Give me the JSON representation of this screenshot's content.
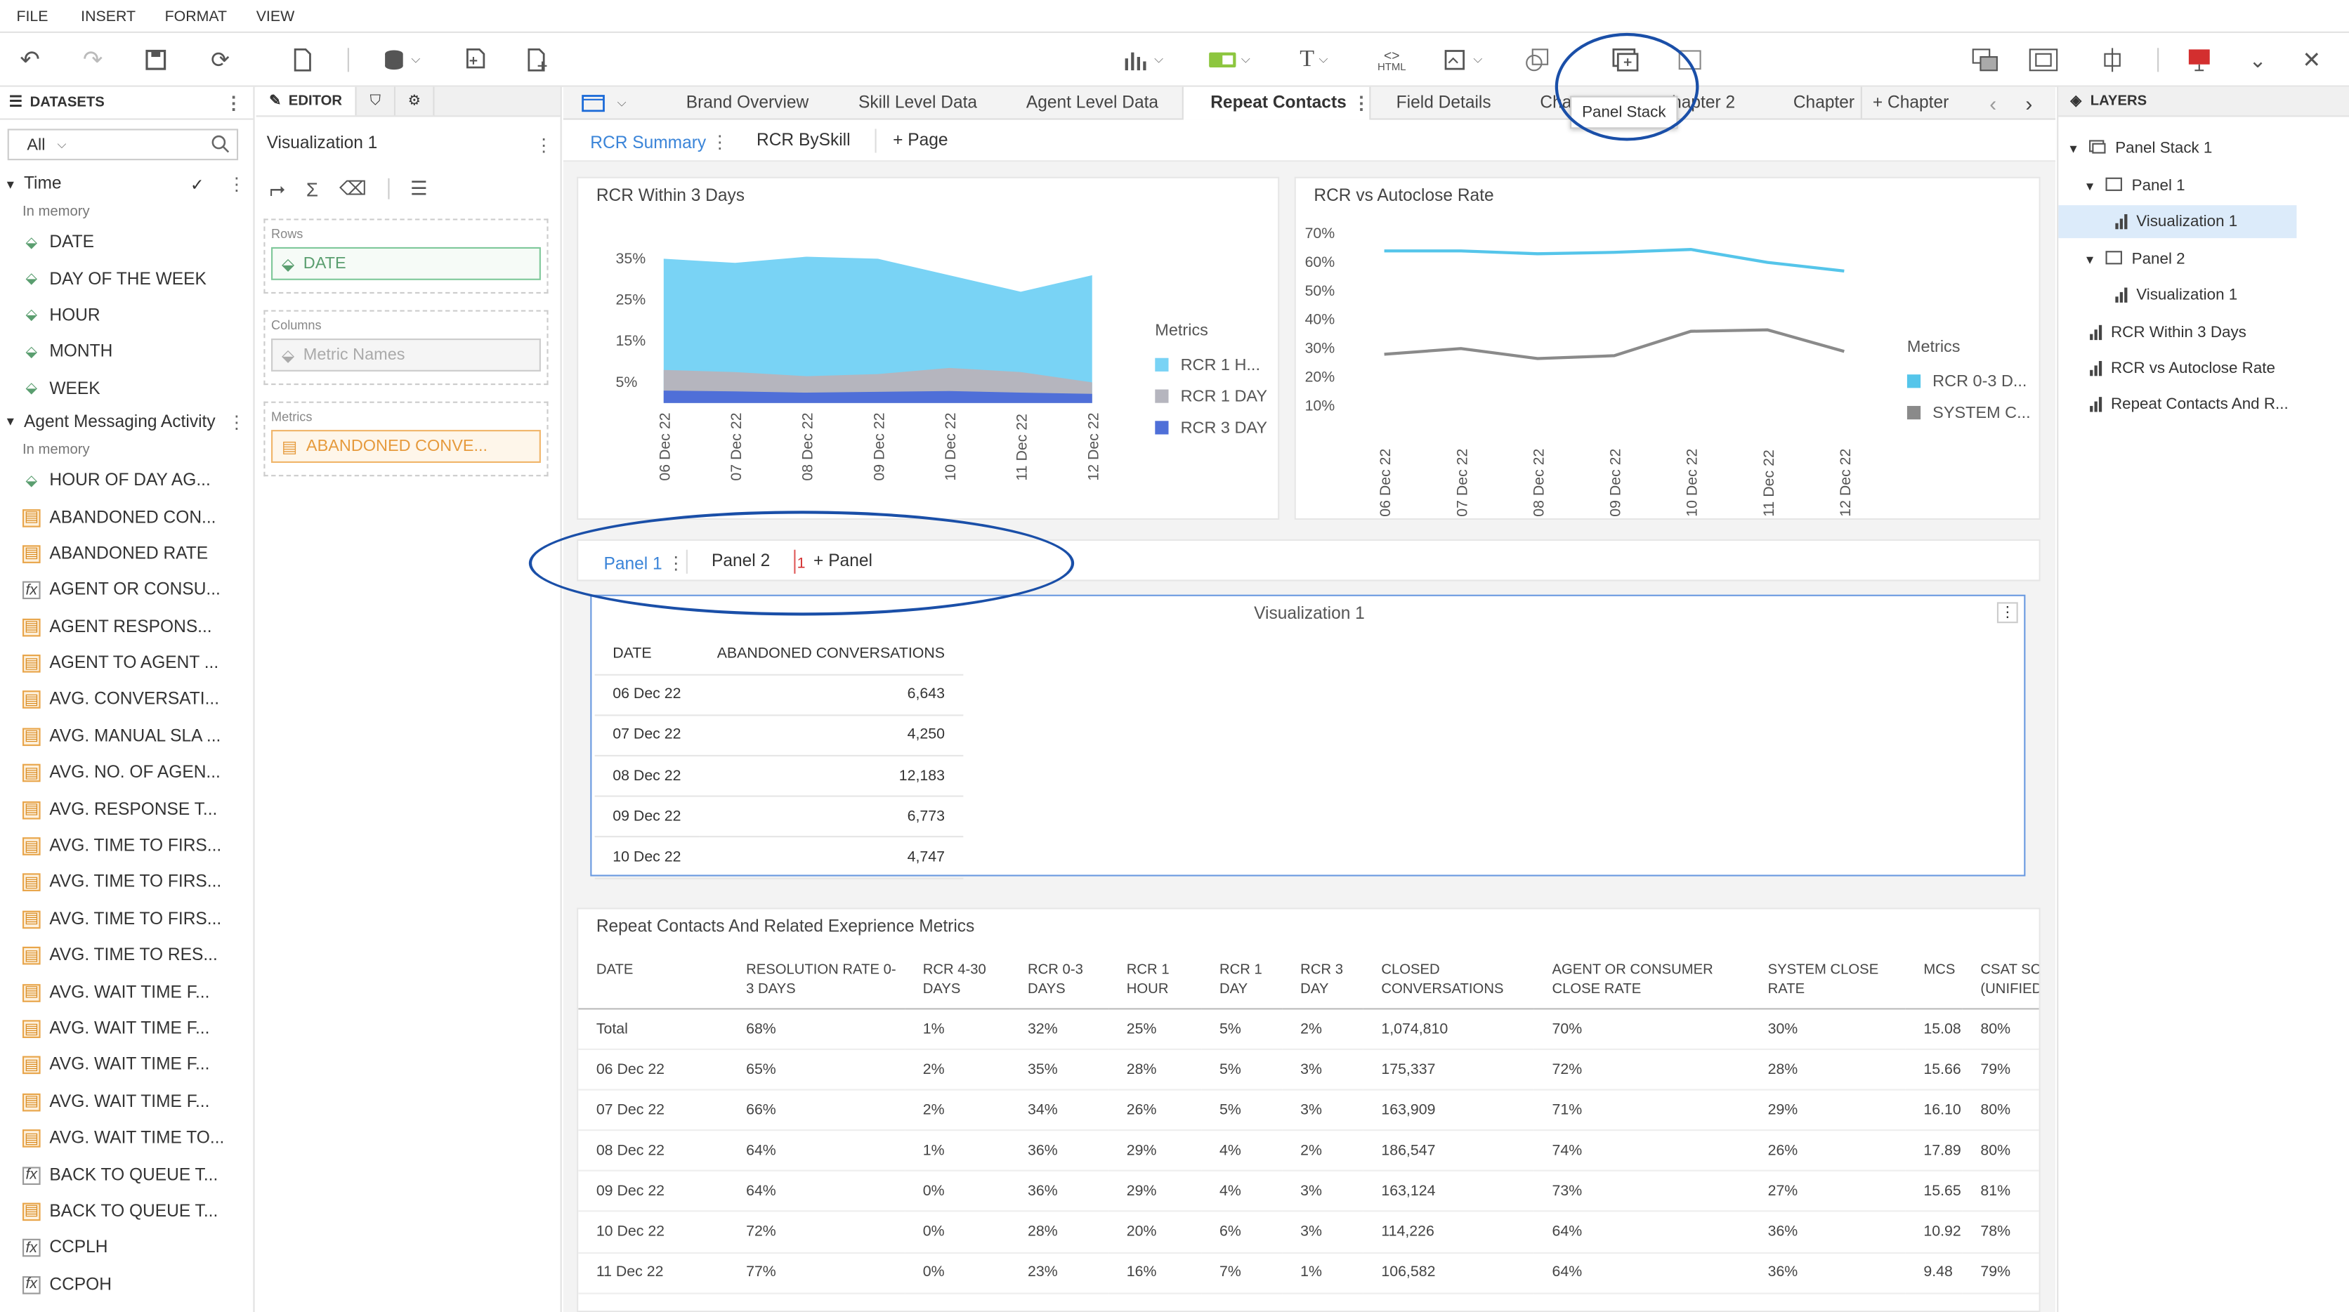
{
  "menu": [
    "FILE",
    "INSERT",
    "FORMAT",
    "VIEW"
  ],
  "tooltip": "Panel Stack",
  "datasets": {
    "title": "DATASETS",
    "filter": "All",
    "groups": [
      {
        "name": "Time",
        "sub": "In memory",
        "items": [
          {
            "label": "DATE",
            "icon": "geo"
          },
          {
            "label": "DAY OF THE WEEK",
            "icon": "geo"
          },
          {
            "label": "HOUR",
            "icon": "geo"
          },
          {
            "label": "MONTH",
            "icon": "geo"
          },
          {
            "label": "WEEK",
            "icon": "geo"
          }
        ]
      },
      {
        "name": "Agent Messaging Activity",
        "sub": "In memory",
        "items": [
          {
            "label": "HOUR OF DAY AG...",
            "icon": "geo"
          },
          {
            "label": "ABANDONED CON...",
            "icon": "metric"
          },
          {
            "label": "ABANDONED RATE",
            "icon": "metric"
          },
          {
            "label": "AGENT OR CONSU...",
            "icon": "fx"
          },
          {
            "label": "AGENT RESPONS...",
            "icon": "metric"
          },
          {
            "label": "AGENT TO AGENT ...",
            "icon": "metric"
          },
          {
            "label": "AVG. CONVERSATI...",
            "icon": "metric"
          },
          {
            "label": "AVG. MANUAL SLA ...",
            "icon": "metric"
          },
          {
            "label": "AVG. NO. OF AGEN...",
            "icon": "metric"
          },
          {
            "label": "AVG. RESPONSE T...",
            "icon": "metric"
          },
          {
            "label": "AVG. TIME TO FIRS...",
            "icon": "metric"
          },
          {
            "label": "AVG. TIME TO FIRS...",
            "icon": "metric"
          },
          {
            "label": "AVG. TIME TO FIRS...",
            "icon": "metric"
          },
          {
            "label": "AVG. TIME TO RES...",
            "icon": "metric"
          },
          {
            "label": "AVG. WAIT TIME F...",
            "icon": "metric"
          },
          {
            "label": "AVG. WAIT TIME F...",
            "icon": "metric"
          },
          {
            "label": "AVG. WAIT TIME F...",
            "icon": "metric"
          },
          {
            "label": "AVG. WAIT TIME F...",
            "icon": "metric"
          },
          {
            "label": "AVG. WAIT TIME TO...",
            "icon": "metric"
          },
          {
            "label": "BACK TO QUEUE T...",
            "icon": "fx"
          },
          {
            "label": "BACK TO QUEUE T...",
            "icon": "metric"
          },
          {
            "label": "CCPLH",
            "icon": "fx"
          },
          {
            "label": "CCPOH",
            "icon": "fx"
          }
        ]
      }
    ]
  },
  "editor": {
    "title": "EDITOR",
    "viz_name": "Visualization 1",
    "rows_label": "Rows",
    "rows_value": "DATE",
    "columns_label": "Columns",
    "columns_value": "Metric Names",
    "metrics_label": "Metrics",
    "metrics_value": "ABANDONED CONVE..."
  },
  "chapters": {
    "tabs": [
      "Brand Overview",
      "Skill Level Data",
      "Agent Level Data",
      "Repeat Contacts",
      "Field Details",
      "Cha",
      "hapter 2",
      "Chapter"
    ],
    "active": "Repeat Contacts",
    "add": "+ Chapter"
  },
  "pages": {
    "tabs": [
      "RCR Summary",
      "RCR BySkill"
    ],
    "add": "+ Page"
  },
  "chart1": {
    "title": "RCR Within 3 Days",
    "legend_title": "Metrics",
    "legend": [
      "RCR 1 H...",
      "RCR 1 DAY",
      "RCR 3 DAY"
    ],
    "yticks": [
      "35%",
      "25%",
      "15%",
      "5%"
    ],
    "colors": [
      "#79d3f5",
      "#b5b5be",
      "#4f6fd8"
    ]
  },
  "chart2": {
    "title": "RCR vs Autoclose Rate",
    "legend_title": "Metrics",
    "legend": [
      "RCR 0-3 D...",
      "SYSTEM C..."
    ],
    "yticks": [
      "70%",
      "60%",
      "50%",
      "40%",
      "30%",
      "20%",
      "10%"
    ],
    "colors": [
      "#55c5ea",
      "#8a8a8a"
    ]
  },
  "chart_data": [
    {
      "type": "area",
      "title": "RCR Within 3 Days",
      "x": [
        "06 Dec 22",
        "07 Dec 22",
        "08 Dec 22",
        "09 Dec 22",
        "10 Dec 22",
        "11 Dec 22",
        "12 Dec 22"
      ],
      "series": [
        {
          "name": "RCR 1 H...",
          "values": [
            35,
            34,
            35.5,
            35,
            31,
            27,
            31
          ]
        },
        {
          "name": "RCR 1 DAY",
          "values": [
            8,
            7.5,
            6.5,
            7,
            8.5,
            7.5,
            5
          ]
        },
        {
          "name": "RCR 3 DAY",
          "values": [
            3,
            2.8,
            2.5,
            2.7,
            2.9,
            2.5,
            2.2
          ]
        }
      ],
      "ylim": [
        0,
        40
      ]
    },
    {
      "type": "line",
      "title": "RCR vs Autoclose Rate",
      "x": [
        "06 Dec 22",
        "07 Dec 22",
        "08 Dec 22",
        "09 Dec 22",
        "10 Dec 22",
        "11 Dec 22",
        "12 Dec 22"
      ],
      "series": [
        {
          "name": "RCR 0-3 D...",
          "values": [
            64,
            64,
            63,
            63.5,
            64.5,
            60,
            57
          ]
        },
        {
          "name": "SYSTEM C...",
          "values": [
            28,
            30,
            26.5,
            27.5,
            36,
            36.5,
            29
          ]
        }
      ],
      "ylim": [
        0,
        70
      ]
    }
  ],
  "panels": {
    "tabs": [
      "Panel 1",
      "Panel 2"
    ],
    "badge": "1",
    "add": "+ Panel"
  },
  "viz1": {
    "title": "Visualization 1",
    "headers": [
      "DATE",
      "ABANDONED CONVERSATIONS"
    ],
    "rows": [
      [
        "06 Dec 22",
        "6,643"
      ],
      [
        "07 Dec 22",
        "4,250"
      ],
      [
        "08 Dec 22",
        "12,183"
      ],
      [
        "09 Dec 22",
        "6,773"
      ],
      [
        "10 Dec 22",
        "4,747"
      ]
    ]
  },
  "bigtable": {
    "title": "Repeat Contacts And Related Exeprience Metrics",
    "headers": [
      "DATE",
      "RESOLUTION RATE 0-3 DAYS",
      "RCR 4-30 DAYS",
      "RCR 0-3 DAYS",
      "RCR 1 HOUR",
      "RCR 1 DAY",
      "RCR 3 DAY",
      "CLOSED CONVERSATIONS",
      "AGENT OR CONSUMER CLOSE RATE",
      "SYSTEM CLOSE RATE",
      "MCS",
      "CSAT SCO (UNIFIED"
    ],
    "rows": [
      [
        "Total",
        "68%",
        "1%",
        "32%",
        "25%",
        "5%",
        "2%",
        "1,074,810",
        "70%",
        "30%",
        "15.08",
        "80%"
      ],
      [
        "06 Dec 22",
        "65%",
        "2%",
        "35%",
        "28%",
        "5%",
        "3%",
        "175,337",
        "72%",
        "28%",
        "15.66",
        "79%"
      ],
      [
        "07 Dec 22",
        "66%",
        "2%",
        "34%",
        "26%",
        "5%",
        "3%",
        "163,909",
        "71%",
        "29%",
        "16.10",
        "80%"
      ],
      [
        "08 Dec 22",
        "64%",
        "1%",
        "36%",
        "29%",
        "4%",
        "2%",
        "186,547",
        "74%",
        "26%",
        "17.89",
        "80%"
      ],
      [
        "09 Dec 22",
        "64%",
        "0%",
        "36%",
        "29%",
        "4%",
        "3%",
        "163,124",
        "73%",
        "27%",
        "15.65",
        "81%"
      ],
      [
        "10 Dec 22",
        "72%",
        "0%",
        "28%",
        "20%",
        "6%",
        "3%",
        "114,226",
        "64%",
        "36%",
        "10.92",
        "78%"
      ],
      [
        "11 Dec 22",
        "77%",
        "0%",
        "23%",
        "16%",
        "7%",
        "1%",
        "106,582",
        "64%",
        "36%",
        "9.48",
        "79%"
      ]
    ]
  },
  "layers": {
    "title": "LAYERS",
    "items": [
      "Panel Stack 1",
      "Panel 1",
      "Visualization 1",
      "Panel 2",
      "Visualization 1",
      "RCR Within 3 Days",
      "RCR vs Autoclose Rate",
      "Repeat Contacts And R..."
    ]
  }
}
